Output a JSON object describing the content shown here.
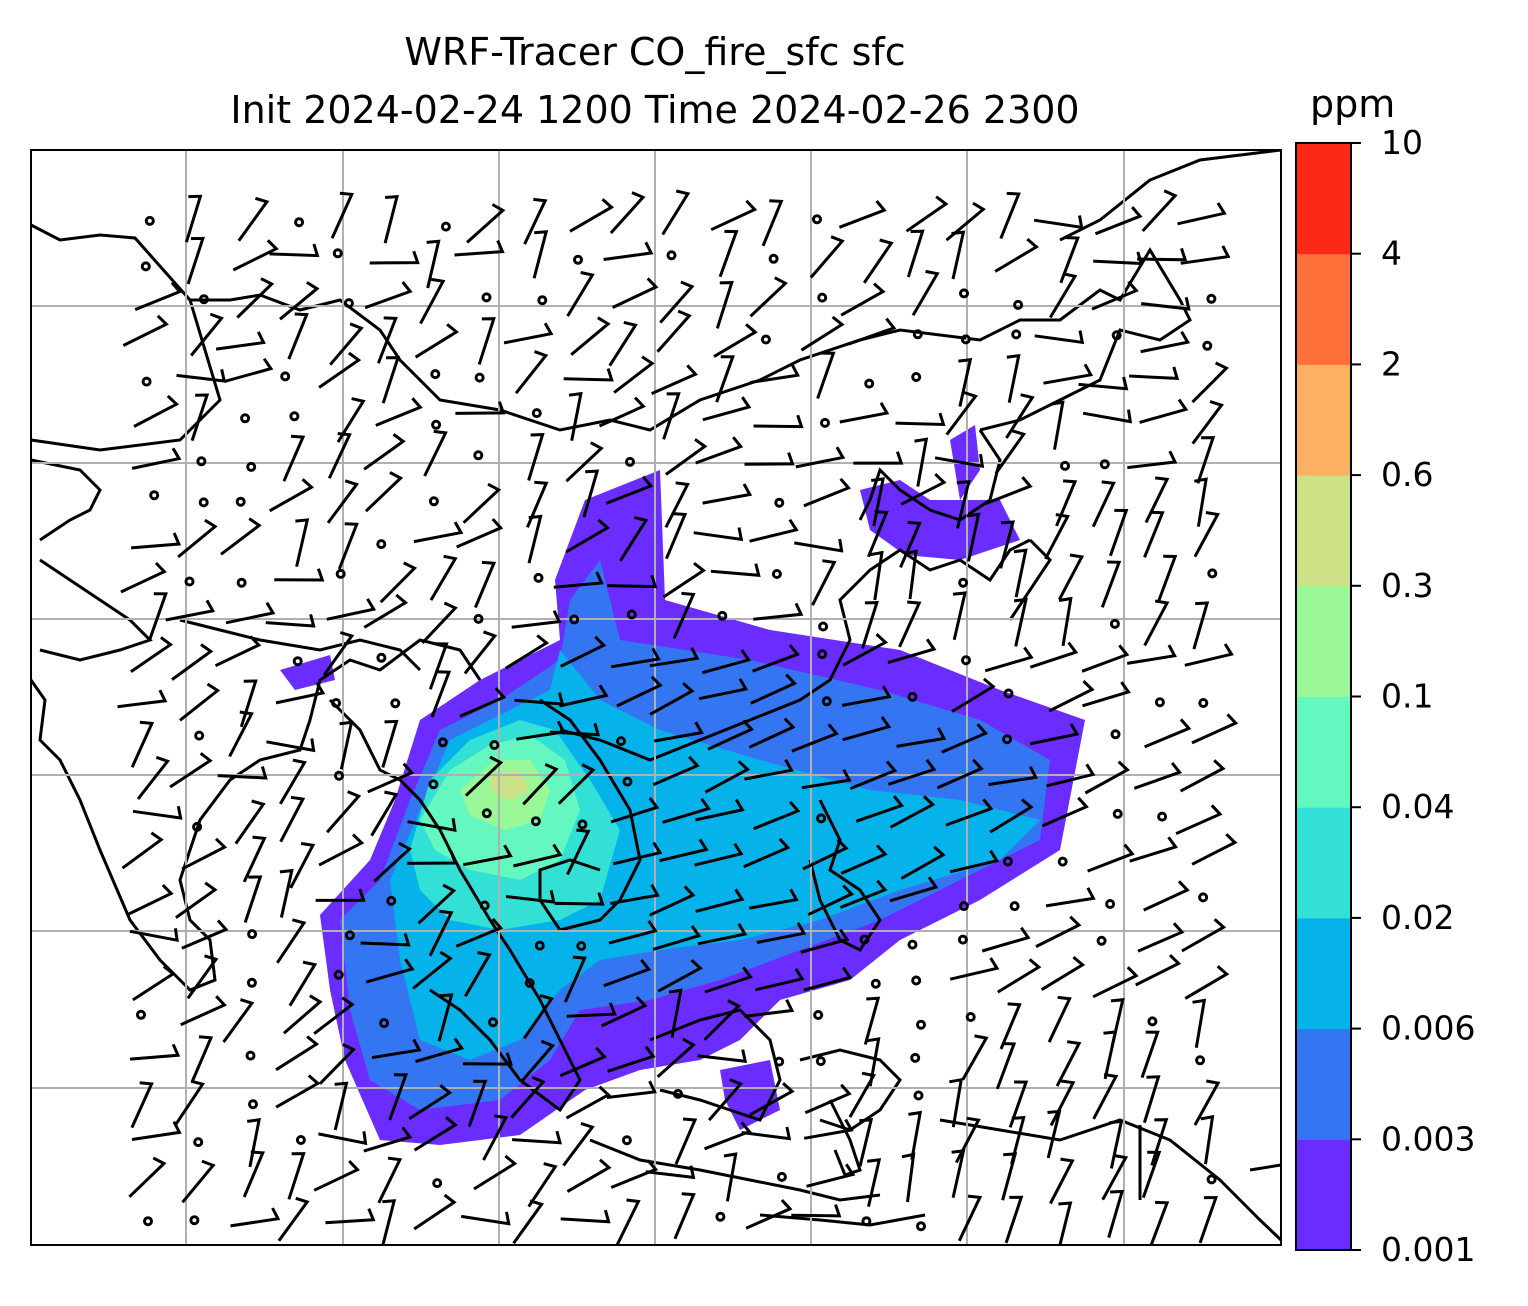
{
  "title": {
    "line1": "WRF-Tracer CO_fire_sfc sfc",
    "line2": "Init 2024-02-24 1200 Time 2024-02-26 2300"
  },
  "colorbar": {
    "units": "ppm",
    "ticks": [
      "0.001",
      "0.003",
      "0.006",
      "0.02",
      "0.04",
      "0.1",
      "0.3",
      "0.6",
      "2",
      "4",
      "10"
    ],
    "colors": [
      "#6a2cff",
      "#3476f2",
      "#05b2ea",
      "#33e0d5",
      "#64f8c0",
      "#9af898",
      "#cde186",
      "#fcb061",
      "#ff713b",
      "#fb2916"
    ]
  },
  "map": {
    "gridlines": true,
    "wind_barbs": true
  }
}
